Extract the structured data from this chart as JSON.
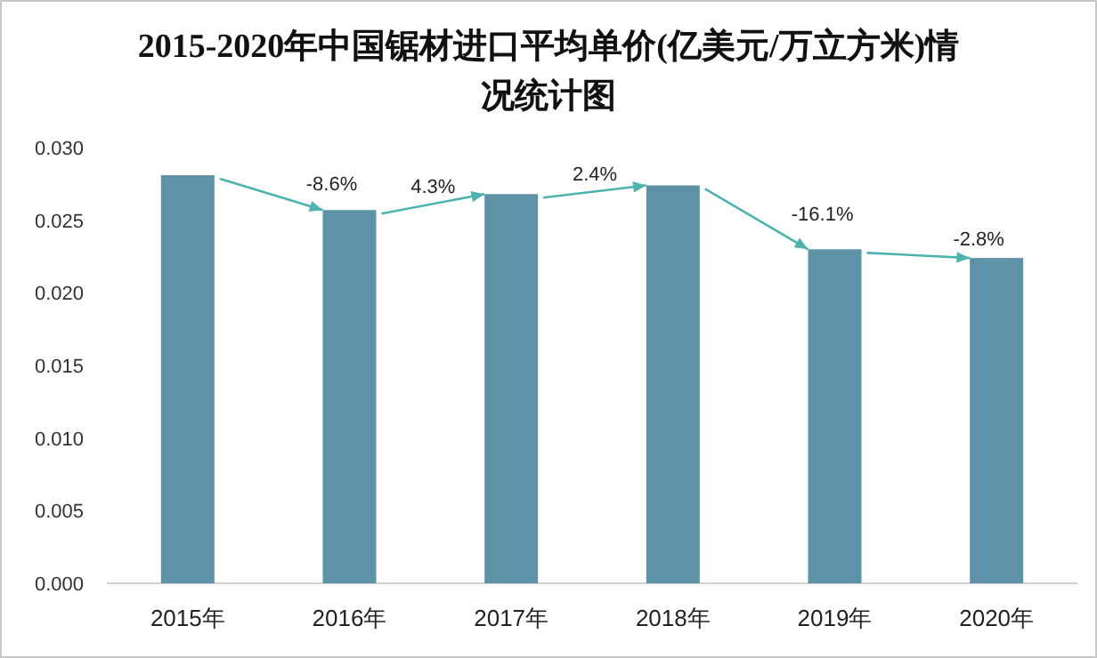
{
  "chart_data": {
    "type": "bar",
    "title": "2015-2020年中国锯材进口平均单价(亿美元/万立方米)情况统计图",
    "categories": [
      "2015年",
      "2016年",
      "2017年",
      "2018年",
      "2019年",
      "2020年"
    ],
    "values": [
      0.0281,
      0.0257,
      0.0268,
      0.0274,
      0.023,
      0.0224
    ],
    "color": "#5e92a7",
    "ylim": [
      0,
      0.03
    ],
    "yticks": [
      {
        "value": 0,
        "label": "0.000"
      },
      {
        "value": 0.005,
        "label": "0.005"
      },
      {
        "value": 0.01,
        "label": "0.010"
      },
      {
        "value": 0.015,
        "label": "0.015"
      },
      {
        "value": 0.02,
        "label": "0.020"
      },
      {
        "value": 0.025,
        "label": "0.025"
      },
      {
        "value": 0.03,
        "label": "0.030"
      }
    ],
    "annotations": [
      {
        "text": "-8.6%",
        "x": "2016年",
        "y": 0.0257
      },
      {
        "text": "4.3%",
        "x": "2017年",
        "y": 0.0268
      },
      {
        "text": "2.4%",
        "x": "2018年",
        "y": 0.0274
      },
      {
        "text": "-16.1%",
        "x": "2019年",
        "y": 0.023
      },
      {
        "text": "-2.8%",
        "x": "2020年",
        "y": 0.0224
      }
    ],
    "grid": false
  }
}
